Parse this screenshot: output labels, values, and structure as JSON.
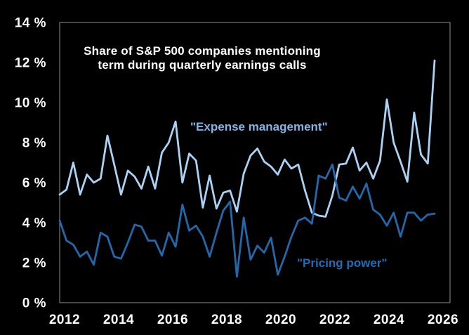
{
  "title": {
    "line1": "Share of S&P 500 companies mentioning",
    "line2": "term during quarterly earnings calls"
  },
  "colors": {
    "background": "#000000",
    "axis_text": "#ffffff",
    "plot_border": "#8f8f8f",
    "expense_line": "#a9d2f4",
    "expense_label": "#7fb5ea",
    "pricing_line": "#2169ab",
    "pricing_label": "#1d6db8"
  },
  "chart_data": {
    "type": "line",
    "title": "Share of S&P 500 companies mentioning term during quarterly earnings calls",
    "xlabel": "",
    "ylabel": "",
    "y_unit": "%",
    "ylim": [
      0,
      14
    ],
    "xlim": [
      2012,
      2026.5
    ],
    "grid": false,
    "legend_position": "inline-annotations",
    "x_frequency": "quarterly",
    "x_quarters": [
      "2012Q1",
      "2012Q2",
      "2012Q3",
      "2012Q4",
      "2013Q1",
      "2013Q2",
      "2013Q3",
      "2013Q4",
      "2014Q1",
      "2014Q2",
      "2014Q3",
      "2014Q4",
      "2015Q1",
      "2015Q2",
      "2015Q3",
      "2015Q4",
      "2016Q1",
      "2016Q2",
      "2016Q3",
      "2016Q4",
      "2017Q1",
      "2017Q2",
      "2017Q3",
      "2017Q4",
      "2018Q1",
      "2018Q2",
      "2018Q3",
      "2018Q4",
      "2019Q1",
      "2019Q2",
      "2019Q3",
      "2019Q4",
      "2020Q1",
      "2020Q2",
      "2020Q3",
      "2020Q4",
      "2021Q1",
      "2021Q2",
      "2021Q3",
      "2021Q4",
      "2022Q1",
      "2022Q2",
      "2022Q3",
      "2022Q4",
      "2023Q1",
      "2023Q2",
      "2023Q3",
      "2023Q4",
      "2024Q1",
      "2024Q2",
      "2024Q3",
      "2024Q4",
      "2025Q1",
      "2025Q2",
      "2025Q3",
      "2025Q4"
    ],
    "series": [
      {
        "id": "expense-management",
        "name": "Expense management",
        "annotation": "\"Expense management\"",
        "color": "#a9d2f4",
        "label_color": "#7fb5ea",
        "values": [
          5.4,
          5.65,
          7.0,
          5.4,
          6.4,
          6.0,
          6.2,
          8.35,
          6.9,
          5.4,
          6.6,
          6.3,
          5.7,
          6.8,
          5.7,
          7.5,
          8.0,
          9.05,
          6.0,
          7.45,
          7.1,
          4.75,
          6.35,
          4.7,
          5.5,
          5.6,
          4.55,
          6.45,
          7.35,
          7.7,
          7.05,
          6.8,
          6.4,
          7.15,
          6.7,
          6.9,
          5.6,
          4.5,
          4.35,
          4.3,
          5.35,
          6.9,
          6.95,
          7.75,
          6.6,
          7.0,
          6.2,
          7.1,
          10.15,
          8.0,
          7.05,
          6.05,
          9.5,
          7.4,
          6.95,
          12.1
        ]
      },
      {
        "id": "pricing-power",
        "name": "Pricing power",
        "annotation": "\"Pricing power\"",
        "color": "#2169ab",
        "label_color": "#1d6db8",
        "values": [
          4.1,
          3.1,
          2.9,
          2.3,
          2.55,
          1.9,
          3.5,
          3.3,
          2.3,
          2.2,
          3.0,
          3.9,
          3.8,
          3.1,
          3.1,
          2.35,
          3.5,
          2.8,
          4.9,
          3.6,
          3.85,
          3.3,
          2.3,
          3.5,
          4.6,
          5.05,
          1.3,
          4.25,
          2.15,
          2.85,
          2.5,
          3.25,
          1.4,
          2.3,
          3.3,
          4.1,
          4.25,
          3.95,
          6.35,
          6.2,
          6.9,
          5.25,
          5.1,
          5.8,
          5.2,
          5.95,
          4.65,
          4.4,
          3.85,
          4.5,
          3.3,
          4.5,
          4.5,
          4.1,
          4.4,
          4.45
        ]
      }
    ],
    "y_ticks": [
      {
        "value": 0,
        "label": "0 %"
      },
      {
        "value": 2,
        "label": "2 %"
      },
      {
        "value": 4,
        "label": "4 %"
      },
      {
        "value": 6,
        "label": "6 %"
      },
      {
        "value": 8,
        "label": "8 %"
      },
      {
        "value": 10,
        "label": "10 %"
      },
      {
        "value": 12,
        "label": "12 %"
      },
      {
        "value": 14,
        "label": "14 %"
      }
    ],
    "x_ticks": [
      {
        "year": 2012,
        "label": "2012"
      },
      {
        "year": 2014,
        "label": "2014"
      },
      {
        "year": 2016,
        "label": "2016"
      },
      {
        "year": 2018,
        "label": "2018"
      },
      {
        "year": 2020,
        "label": "2020"
      },
      {
        "year": 2022,
        "label": "2022"
      },
      {
        "year": 2024,
        "label": "2024"
      },
      {
        "year": 2026,
        "label": "2026"
      }
    ]
  }
}
